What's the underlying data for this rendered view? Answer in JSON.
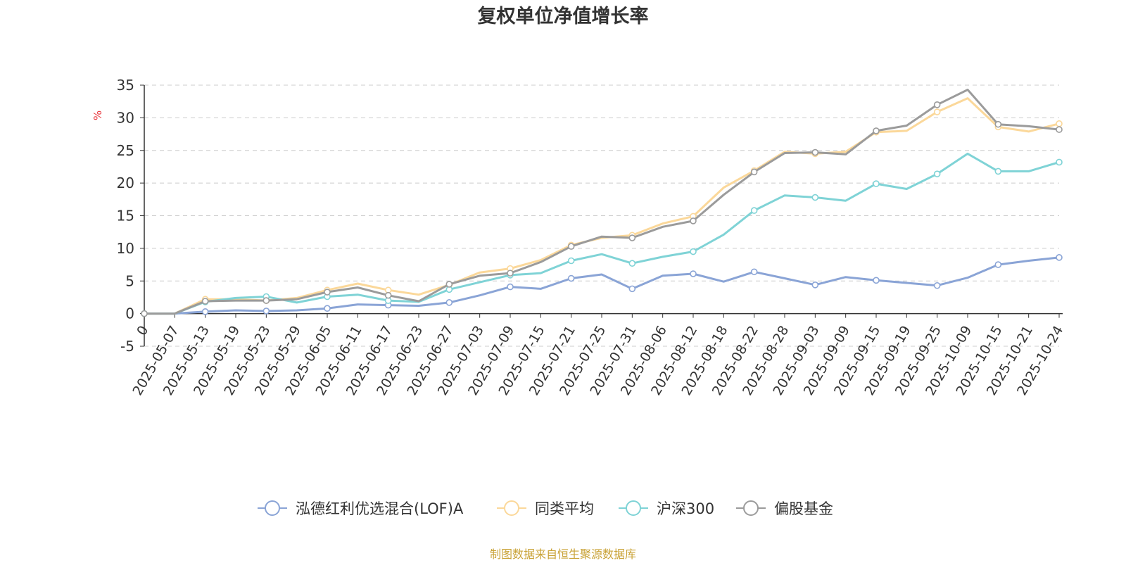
{
  "chart_data": {
    "type": "line",
    "title": "复权单位净值增长率",
    "ylabel": "%",
    "ylim": [
      -5,
      35
    ],
    "yticks": [
      35,
      30,
      25,
      20,
      15,
      10,
      5,
      0,
      -5
    ],
    "grid": true,
    "legend_position": "bottom-center",
    "x_start_label": "0",
    "categories": [
      "2025-05-07",
      "2025-05-13",
      "2025-05-19",
      "2025-05-23",
      "2025-05-29",
      "2025-06-05",
      "2025-06-11",
      "2025-06-17",
      "2025-06-23",
      "2025-06-27",
      "2025-07-03",
      "2025-07-09",
      "2025-07-15",
      "2025-07-21",
      "2025-07-25",
      "2025-07-31",
      "2025-08-06",
      "2025-08-12",
      "2025-08-18",
      "2025-08-22",
      "2025-08-28",
      "2025-09-03",
      "2025-09-09",
      "2025-09-15",
      "2025-09-19",
      "2025-09-25",
      "2025-10-09",
      "2025-10-15",
      "2025-10-21",
      "2025-10-24"
    ],
    "series": [
      {
        "name": "泓德红利优选混合(LOF)A",
        "color": "#8aa4d6",
        "values": [
          0,
          0.3,
          0.5,
          0.4,
          0.5,
          0.8,
          1.4,
          1.3,
          1.2,
          1.7,
          2.8,
          4.1,
          3.8,
          5.4,
          6.0,
          3.8,
          5.8,
          6.1,
          4.9,
          6.4,
          5.4,
          4.4,
          5.6,
          5.1,
          4.7,
          4.3,
          5.5,
          7.5,
          8.1,
          8.6
        ]
      },
      {
        "name": "同类平均",
        "color": "#fbd89a",
        "values": [
          0,
          2.2,
          2.2,
          2.0,
          2.4,
          3.6,
          4.6,
          3.6,
          2.9,
          4.4,
          6.3,
          6.9,
          8.2,
          10.5,
          11.6,
          12.0,
          13.8,
          14.9,
          19.3,
          21.9,
          24.8,
          24.5,
          24.8,
          27.8,
          28.0,
          30.9,
          33.0,
          28.6,
          27.9,
          29.1
        ]
      },
      {
        "name": "沪深300",
        "color": "#7fd3d6",
        "values": [
          0,
          1.8,
          2.4,
          2.6,
          1.7,
          2.6,
          2.9,
          2.0,
          1.8,
          3.7,
          4.8,
          5.9,
          6.2,
          8.1,
          9.1,
          7.7,
          8.7,
          9.5,
          12.1,
          15.8,
          18.1,
          17.8,
          17.3,
          19.9,
          19.1,
          21.4,
          24.5,
          21.8,
          21.8,
          23.2
        ]
      },
      {
        "name": "偏股基金",
        "color": "#9b9b9b",
        "values": [
          0,
          1.9,
          2.0,
          2.0,
          2.2,
          3.3,
          4.0,
          2.8,
          1.9,
          4.5,
          5.8,
          6.2,
          7.9,
          10.3,
          11.8,
          11.6,
          13.3,
          14.2,
          18.2,
          21.7,
          24.6,
          24.7,
          24.4,
          28.0,
          28.8,
          32.0,
          34.3,
          29.0,
          28.7,
          28.2
        ]
      }
    ]
  },
  "source_note": "制图数据来自恒生聚源数据库"
}
